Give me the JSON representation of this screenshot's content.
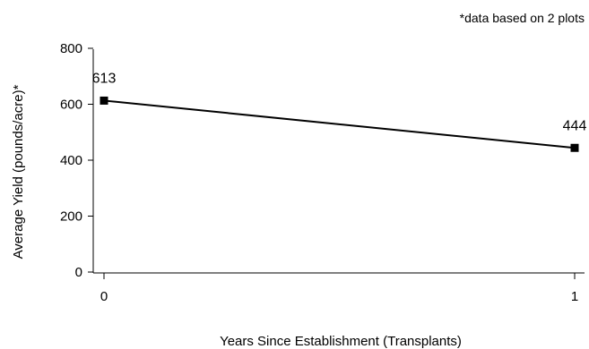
{
  "chart_data": {
    "type": "line",
    "note": "*data based on 2 plots",
    "xlabel": "Years Since Establishment (Transplants)",
    "ylabel": "Average Yield (pounds/acre)*",
    "x": [
      0,
      1
    ],
    "x_tick_labels": [
      "0",
      "1"
    ],
    "y_ticks": [
      0,
      200,
      400,
      600,
      800
    ],
    "y_tick_labels": [
      "0",
      "200",
      "400",
      "600",
      "800"
    ],
    "ylim": [
      0,
      800
    ],
    "xlim": [
      0,
      1
    ],
    "series": [
      {
        "values": [
          613,
          444
        ],
        "data_labels": [
          "613",
          "444"
        ],
        "color": "#000000",
        "marker": "square"
      }
    ],
    "grid": false
  }
}
